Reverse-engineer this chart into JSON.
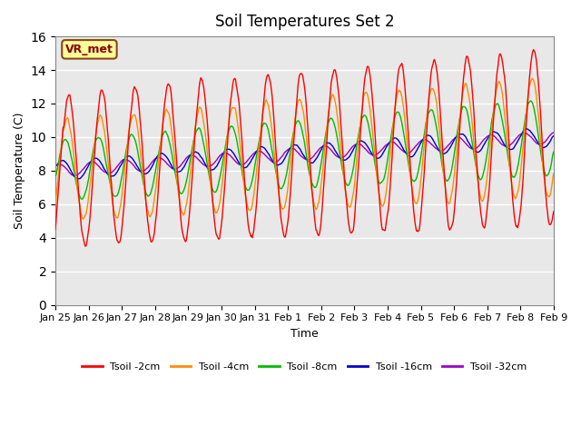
{
  "title": "Soil Temperatures Set 2",
  "xlabel": "Time",
  "ylabel": "Soil Temperature (C)",
  "ylim": [
    0,
    16
  ],
  "yticks": [
    0,
    2,
    4,
    6,
    8,
    10,
    12,
    14,
    16
  ],
  "bg_color": "#e8e8e8",
  "fig_color": "#ffffff",
  "annotation_text": "VR_met",
  "annotation_color": "#8b0000",
  "annotation_bg": "#ffff99",
  "annotation_border": "#8b4513",
  "line_colors": {
    "2cm": "#ff0000",
    "4cm": "#ff8c00",
    "8cm": "#00bb00",
    "16cm": "#0000cc",
    "32cm": "#9900cc"
  },
  "legend_labels": [
    "Tsoil -2cm",
    "Tsoil -4cm",
    "Tsoil -8cm",
    "Tsoil -16cm",
    "Tsoil -32cm"
  ],
  "xtick_labels": [
    "Jan 25",
    "Jan 26",
    "Jan 27",
    "Jan 28",
    "Jan 29",
    "Jan 30",
    "Jan 31",
    "Feb 1",
    "Feb 2",
    "Feb 3",
    "Feb 4",
    "Feb 5",
    "Feb 6",
    "Feb 7",
    "Feb 8",
    "Feb 9"
  ],
  "n_days": 15,
  "points_per_day": 48
}
